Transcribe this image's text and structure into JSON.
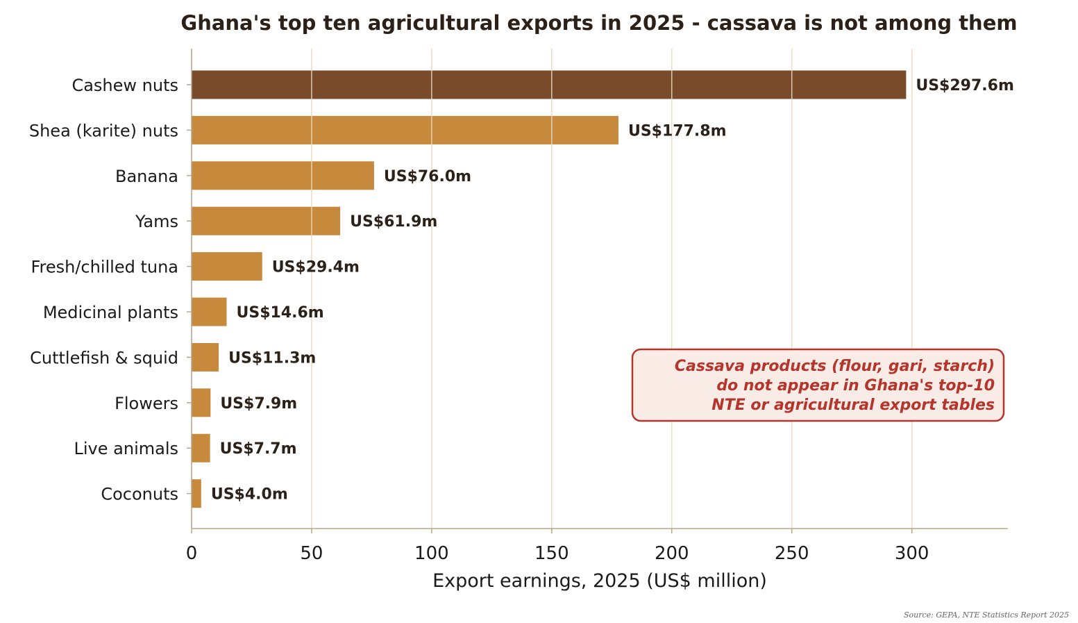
{
  "chart_data": {
    "type": "bar",
    "orientation": "horizontal",
    "title": "Ghana's top ten agricultural exports in 2025 - cassava is not among them",
    "xlabel": "Export earnings, 2025 (US$ million)",
    "ylabel": "",
    "xlim": [
      0,
      340
    ],
    "xticks": [
      0,
      50,
      100,
      150,
      200,
      250,
      300
    ],
    "grid": "vertical",
    "categories": [
      "Cashew nuts",
      "Shea (karite) nuts",
      "Banana",
      "Yams",
      "Fresh/chilled tuna",
      "Medicinal plants",
      "Cuttlefish & squid",
      "Flowers",
      "Live animals",
      "Coconuts"
    ],
    "values": [
      297.6,
      177.8,
      76.0,
      61.9,
      29.4,
      14.6,
      11.3,
      7.9,
      7.7,
      4.0
    ],
    "value_labels": [
      "US$297.6m",
      "US$177.8m",
      "US$76.0m",
      "US$61.9m",
      "US$29.4m",
      "US$14.6m",
      "US$11.3m",
      "US$7.9m",
      "US$7.7m",
      "US$4.0m"
    ],
    "highlight_index": 0,
    "colors": {
      "highlight": "#7a4b2a",
      "bar": "#c78a3c",
      "grid": "#ebdfc8",
      "axis": "#b8a68a",
      "note_text": "#b5352c",
      "note_fill": "#f9ebe6",
      "note_border": "#b5352c"
    },
    "annotation": {
      "lines": [
        "Cassava products (flour, gari, starch)",
        "do not appear in Ghana's top-10",
        "NTE or agricultural export tables"
      ],
      "placement": "lower-right"
    },
    "source": "Source: GEPA, NTE Statistics Report 2025"
  }
}
